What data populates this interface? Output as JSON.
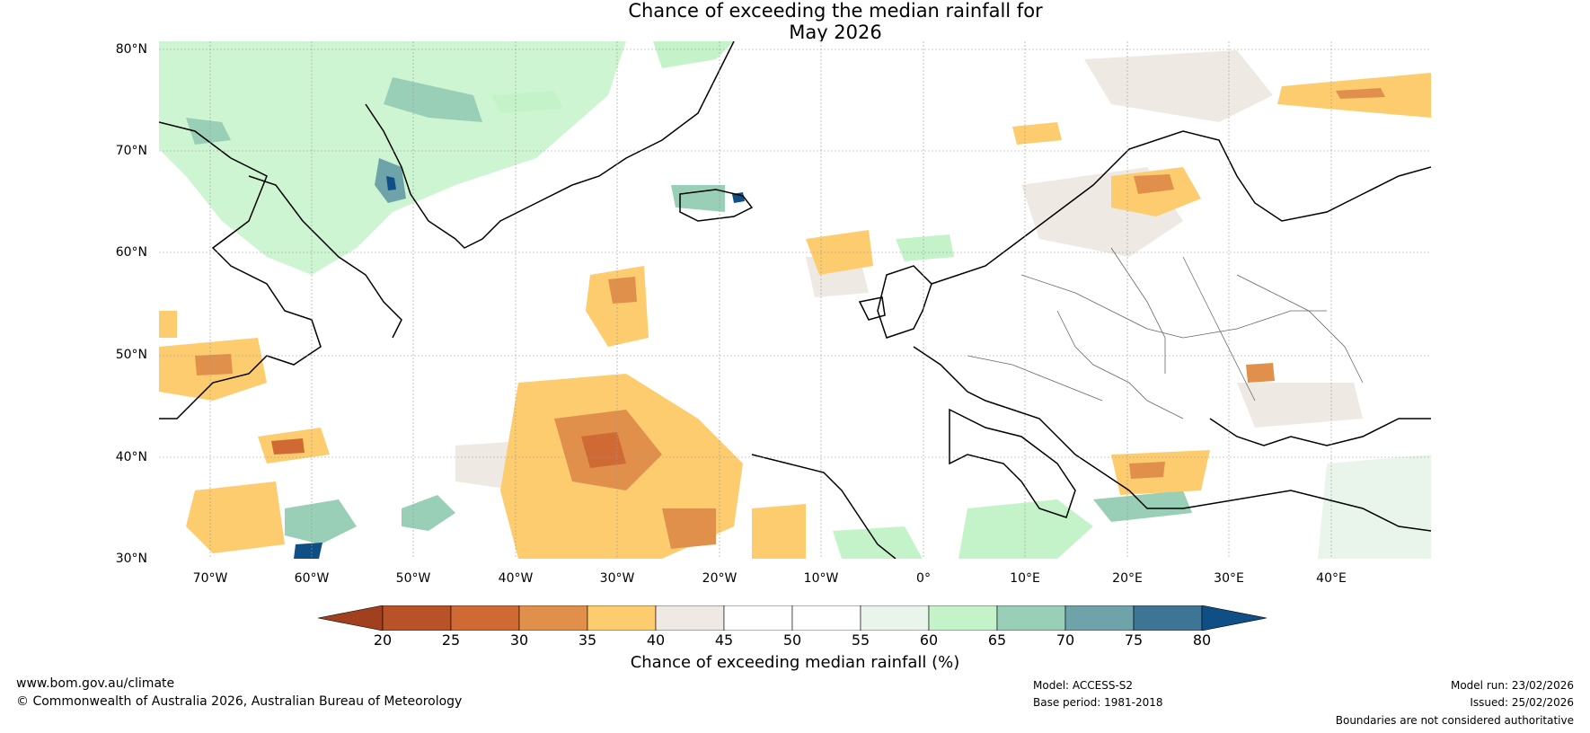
{
  "title": {
    "line1": "Chance of exceeding the median rainfall for",
    "line2": "May 2026"
  },
  "latitude_labels": [
    "80°N",
    "70°N",
    "60°N",
    "50°N",
    "40°N",
    "30°N"
  ],
  "longitude_labels": [
    "70°W",
    "60°W",
    "50°W",
    "40°W",
    "30°W",
    "20°W",
    "10°W",
    "0°",
    "10°E",
    "20°E",
    "30°E",
    "40°E"
  ],
  "colorbar": {
    "ticks": [
      "20",
      "25",
      "30",
      "35",
      "40",
      "45",
      "50",
      "55",
      "60",
      "65",
      "70",
      "75",
      "80"
    ],
    "colors": [
      "#a0401e",
      "#b85228",
      "#cf6a34",
      "#e0904a",
      "#fdcc6e",
      "#efe9e4",
      "#ffffff",
      "#ffffff",
      "#e9f5ea",
      "#c5f3c9",
      "#99cfb6",
      "#6fa3aa",
      "#3f7594",
      "#0f4f85"
    ],
    "title": "Chance of exceeding median rainfall (%)"
  },
  "footer": {
    "website": "www.bom.gov.au/climate",
    "copyright": "© Commonwealth of Australia 2026, Australian Bureau of Meteorology",
    "model": "Model: ACCESS-S2",
    "base_period": "Base period: 1981-2018",
    "model_run": "Model run: 23/02/2026",
    "issued": "Issued: 25/02/2026",
    "disclaimer": "Boundaries are not considered authoritative"
  }
}
